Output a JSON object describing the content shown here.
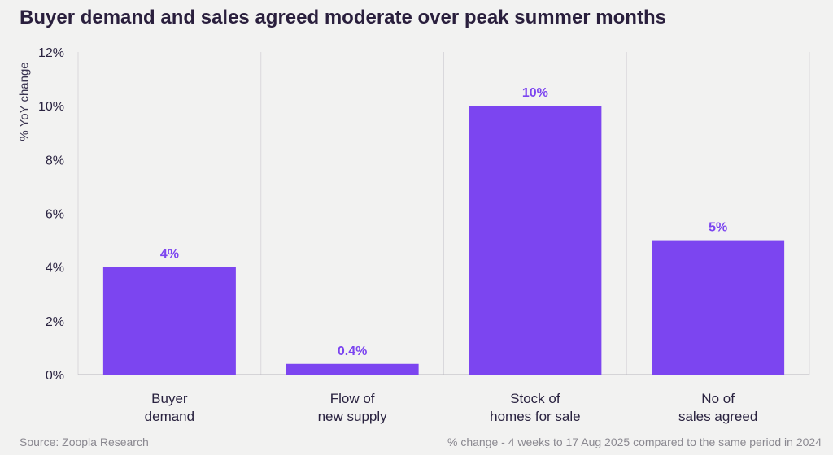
{
  "colors": {
    "bar": "#7c45f0",
    "label": "#7c45f0",
    "background": "#f2f2f1",
    "text": "#2a2340"
  },
  "chart_data": {
    "type": "bar",
    "title": "Buyer demand and sales agreed moderate over peak summer months",
    "ylabel": "% YoY change",
    "xlabel": "",
    "ylim": [
      0,
      12
    ],
    "yticks": [
      "0%",
      "2%",
      "4%",
      "6%",
      "8%",
      "10%",
      "12%"
    ],
    "ytick_values": [
      0,
      2,
      4,
      6,
      8,
      10,
      12
    ],
    "categories": [
      [
        "Buyer",
        "demand"
      ],
      [
        "Flow of",
        "new supply"
      ],
      [
        "Stock of",
        "homes for sale"
      ],
      [
        "No of",
        "sales agreed"
      ]
    ],
    "values": [
      4,
      0.4,
      10,
      5
    ],
    "value_labels": [
      "4%",
      "0.4%",
      "10%",
      "5%"
    ],
    "grid": "vertical separators",
    "legend": "none"
  },
  "footer": {
    "source": "Source: Zoopla Research",
    "note": "% change - 4 weeks to 17 Aug 2025 compared to the same period in 2024"
  }
}
